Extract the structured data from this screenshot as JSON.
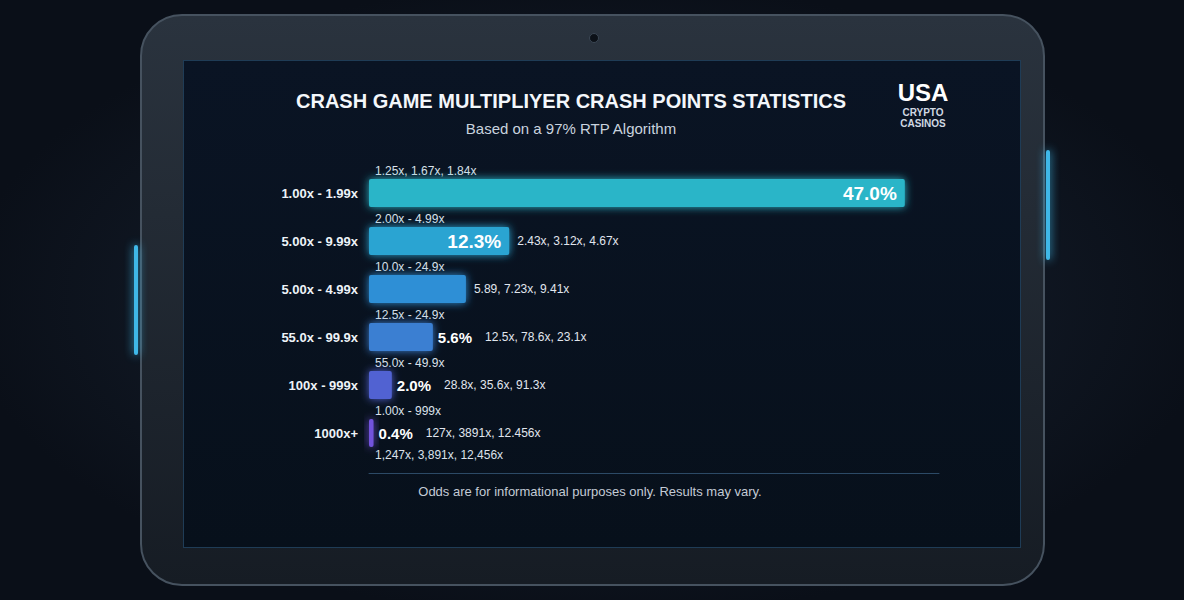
{
  "chart_data": {
    "type": "bar",
    "title": "CRASH GAME MULTIPLIYER CRASH POINTS STATISTICS",
    "subtitle": "Based on a 97% RTP Algorithm",
    "logo": {
      "title": "USA",
      "lines": [
        "CRYPTO",
        "CASINOS"
      ]
    },
    "note": "Odds are for informational purposes only. Results may vary.",
    "orientation": "horizontal",
    "categories": [
      "1.00x - 1.99x",
      "5.00x - 9.99x",
      "5.00x - 4.99x",
      "55.0x - 99.9x",
      "100x - 999x",
      "1000x+"
    ],
    "values": [
      47.0,
      12.3,
      8.5,
      5.6,
      2.0,
      0.4
    ],
    "value_labels": [
      "47.0%",
      "12.3%",
      null,
      "5.6%",
      "2.0%",
      "0.4%"
    ],
    "colors": [
      "#2bb5c8",
      "#2aa4d2",
      "#2f8fd6",
      "#3a7fd2",
      "#5162d2",
      "#7252dc"
    ],
    "annotations": {
      "above": [
        "1.25x, 1.67x, 1.84x",
        "2.00x - 4.99x",
        "10.0x - 24.9x",
        "12.5x - 24.9x",
        "55.0x - 49.9x",
        "1.00x - 999x"
      ],
      "beside": [
        null,
        "2.43x, 3.12x, 4.67x",
        "5.89, 7.23x, 9.41x",
        "12.5x, 78.6x, 23.1x",
        "28.8x, 35.6x, 91.3x",
        "127x, 3891x, 12.456x"
      ],
      "below_last": "1,247x, 3,891x, 12,456x"
    },
    "xlim": [
      0,
      50
    ],
    "tick_labels": false,
    "grid": false,
    "data_labels": true
  }
}
